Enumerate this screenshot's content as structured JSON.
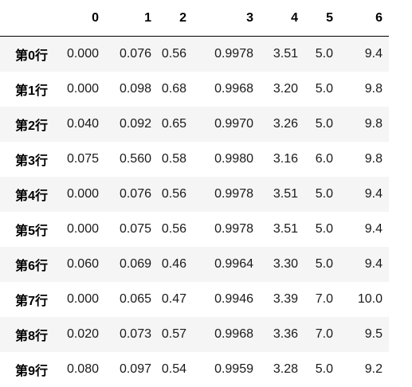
{
  "table": {
    "index_header": "",
    "columns": [
      "0",
      "1",
      "2",
      "3",
      "4",
      "5",
      "6"
    ],
    "rows": [
      {
        "index": "第0行",
        "cells": [
          "0.000",
          "0.076",
          "0.56",
          "0.9978",
          "3.51",
          "5.0",
          "9.4"
        ]
      },
      {
        "index": "第1行",
        "cells": [
          "0.000",
          "0.098",
          "0.68",
          "0.9968",
          "3.20",
          "5.0",
          "9.8"
        ]
      },
      {
        "index": "第2行",
        "cells": [
          "0.040",
          "0.092",
          "0.65",
          "0.9970",
          "3.26",
          "5.0",
          "9.8"
        ]
      },
      {
        "index": "第3行",
        "cells": [
          "0.075",
          "0.560",
          "0.58",
          "0.9980",
          "3.16",
          "6.0",
          "9.8"
        ]
      },
      {
        "index": "第4行",
        "cells": [
          "0.000",
          "0.076",
          "0.56",
          "0.9978",
          "3.51",
          "5.0",
          "9.4"
        ]
      },
      {
        "index": "第5行",
        "cells": [
          "0.000",
          "0.075",
          "0.56",
          "0.9978",
          "3.51",
          "5.0",
          "9.4"
        ]
      },
      {
        "index": "第6行",
        "cells": [
          "0.060",
          "0.069",
          "0.46",
          "0.9964",
          "3.30",
          "5.0",
          "9.4"
        ]
      },
      {
        "index": "第7行",
        "cells": [
          "0.000",
          "0.065",
          "0.47",
          "0.9946",
          "3.39",
          "7.0",
          "10.0"
        ]
      },
      {
        "index": "第8行",
        "cells": [
          "0.020",
          "0.073",
          "0.57",
          "0.9968",
          "3.36",
          "7.0",
          "9.5"
        ]
      },
      {
        "index": "第9行",
        "cells": [
          "0.080",
          "0.097",
          "0.54",
          "0.9959",
          "3.28",
          "5.0",
          "9.2"
        ]
      }
    ]
  },
  "colors": {
    "stripe": "#f5f5f5",
    "header_rule": "#000000",
    "text": "#000000"
  }
}
